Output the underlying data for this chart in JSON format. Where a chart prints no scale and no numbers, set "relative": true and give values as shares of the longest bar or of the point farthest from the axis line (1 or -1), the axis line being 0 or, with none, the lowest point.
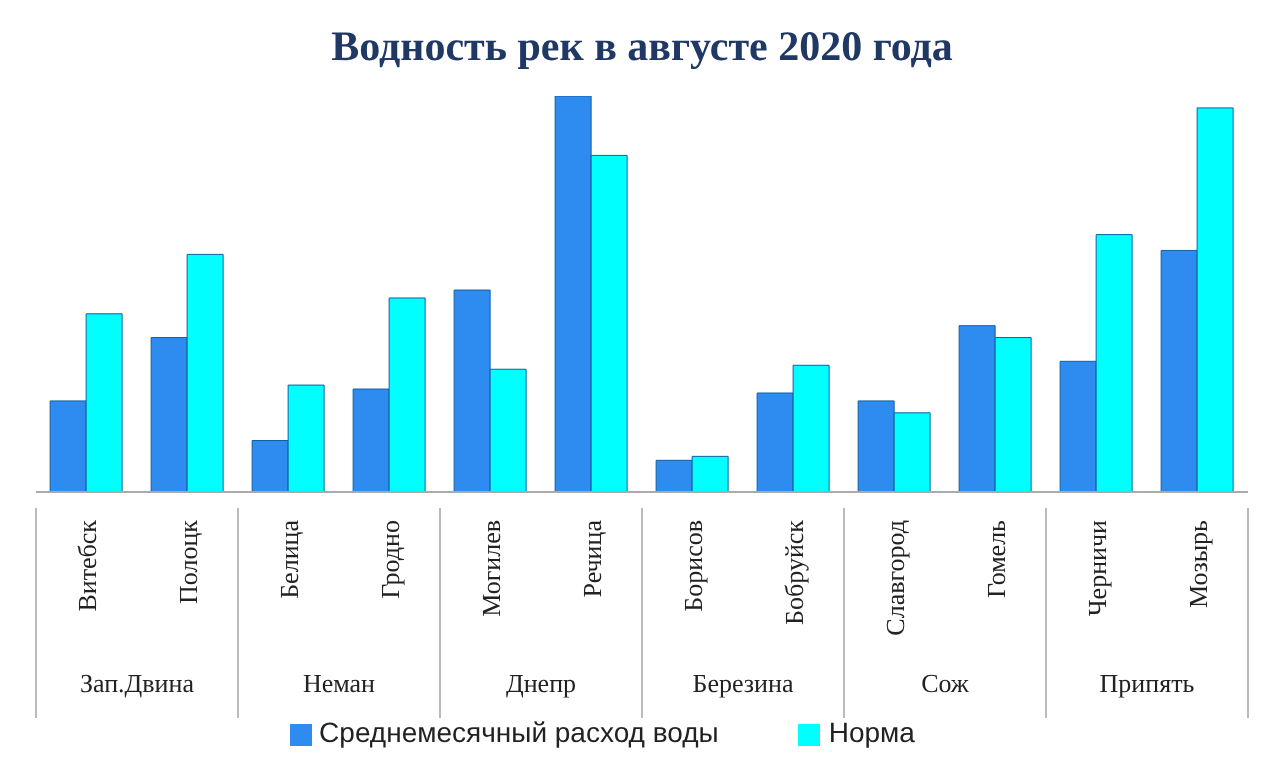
{
  "chart_data": {
    "type": "bar",
    "title": "Водность рек в августе 2020 года",
    "relative": true,
    "legend": "bottom",
    "categories": [
      "Витебск",
      "Полоцк",
      "Белица",
      "Гродно",
      "Могилев",
      "Речица",
      "Борисов",
      "Бобруйск",
      "Славгород",
      "Гомель",
      "Черничи",
      "Мозырь"
    ],
    "annotations": [
      "Зап.Двина",
      "Неман",
      "Днепр",
      "Березина",
      "Сож",
      "Припять"
    ],
    "series": [
      {
        "name": "Среднемесячный расход воды",
        "color": "#2e8bef",
        "values": [
          0.23,
          0.39,
          0.13,
          0.26,
          0.51,
          1,
          0.08,
          0.25,
          0.23,
          0.42,
          0.33,
          0.61
        ]
      },
      {
        "name": "Норма",
        "color": "#00ffff",
        "values": [
          0.45,
          0.6,
          0.27,
          0.49,
          0.31,
          0.85,
          0.09,
          0.32,
          0.2,
          0.39,
          0.65,
          0.97
        ]
      }
    ]
  }
}
